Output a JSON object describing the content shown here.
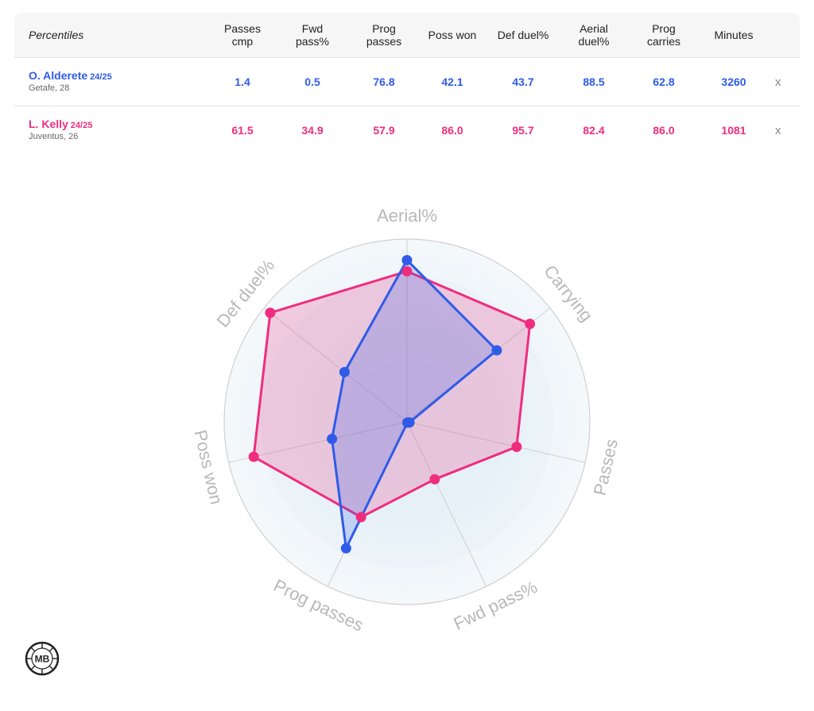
{
  "table": {
    "title": "Percentiles",
    "columns": [
      "Passes\ncmp",
      "Fwd\npass%",
      "Prog\npasses",
      "Poss won",
      "Def duel%",
      "Aerial\nduel%",
      "Prog\ncarries",
      "Minutes"
    ],
    "players": [
      {
        "name": "O. Alderete",
        "season": "24/25",
        "club": "Getafe, 28",
        "color": "#2f5be8",
        "values": [
          "1.4",
          "0.5",
          "76.8",
          "42.1",
          "43.7",
          "88.5",
          "62.8",
          "3260"
        ],
        "remove_label": "x"
      },
      {
        "name": "L. Kelly",
        "season": "24/25",
        "club": "Juventus, 26",
        "color": "#ef2d7f",
        "values": [
          "61.5",
          "34.9",
          "57.9",
          "86.0",
          "95.7",
          "82.4",
          "86.0",
          "1081"
        ],
        "remove_label": "x"
      }
    ]
  },
  "chart_data": {
    "type": "radar",
    "axes": [
      "Aerial%",
      "Carrying",
      "Passes",
      "Fwd pass%",
      "Prog passes",
      "Poss won",
      "Def duel%"
    ],
    "range": [
      0,
      100
    ],
    "series": [
      {
        "name": "L. Kelly",
        "color": "#ef2d7f",
        "values": [
          82.4,
          86.0,
          61.5,
          34.9,
          57.9,
          86.0,
          95.7
        ]
      },
      {
        "name": "O. Alderete",
        "color": "#2f5be8",
        "values": [
          88.5,
          62.8,
          1.4,
          0.5,
          76.8,
          42.1,
          43.7
        ]
      }
    ]
  },
  "logo_text": "MB"
}
